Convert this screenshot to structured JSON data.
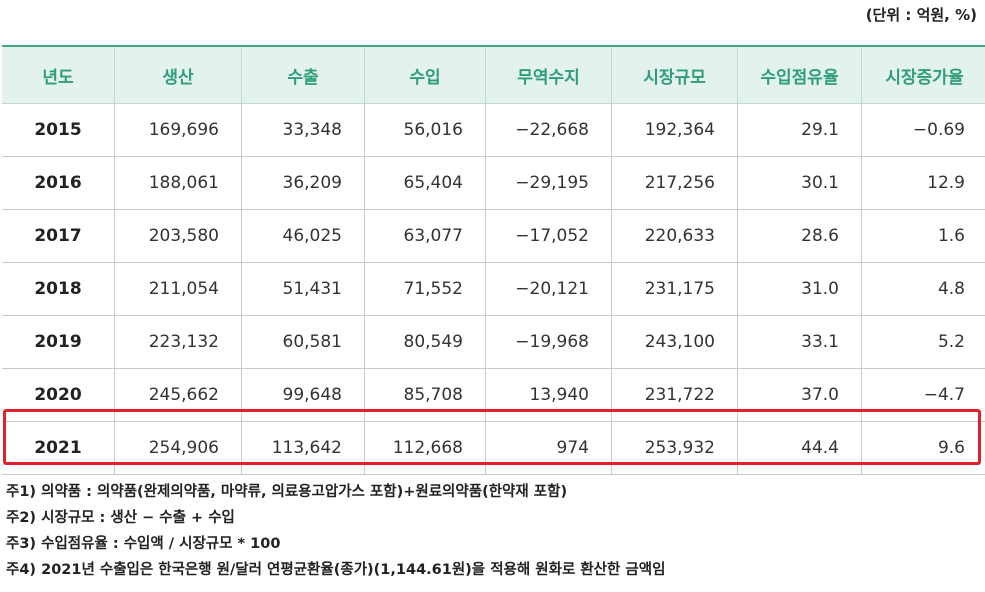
{
  "unit_label": "(단위 : 억원, %)",
  "table": {
    "headers": [
      "년도",
      "생산",
      "수출",
      "수입",
      "무역수지",
      "시장규모",
      "수입점유율",
      "시장증가율"
    ],
    "rows": [
      [
        "2015",
        "169,696",
        "33,348",
        "56,016",
        "−22,668",
        "192,364",
        "29.1",
        "−0.69"
      ],
      [
        "2016",
        "188,061",
        "36,209",
        "65,404",
        "−29,195",
        "217,256",
        "30.1",
        "12.9"
      ],
      [
        "2017",
        "203,580",
        "46,025",
        "63,077",
        "−17,052",
        "220,633",
        "28.6",
        "1.6"
      ],
      [
        "2018",
        "211,054",
        "51,431",
        "71,552",
        "−20,121",
        "231,175",
        "31.0",
        "4.8"
      ],
      [
        "2019",
        "223,132",
        "60,581",
        "80,549",
        "−19,968",
        "243,100",
        "33.1",
        "5.2"
      ],
      [
        "2020",
        "245,662",
        "99,648",
        "85,708",
        "13,940",
        "231,722",
        "37.0",
        "−4.7"
      ],
      [
        "2021",
        "254,906",
        "113,642",
        "112,668",
        "974",
        "253,932",
        "44.4",
        "9.6"
      ]
    ]
  },
  "highlight_color": "#e0202a",
  "header_text_color": "#2e9e77",
  "header_bg_color": "#e3f2ee",
  "notes": [
    "주1) 의약품 : 의약품(완제의약품, 마약류, 의료용고압가스 포함)+원료의약품(한약재 포함)",
    "주2) 시장규모 : 생산 − 수출 + 수입",
    "주3) 수입점유율 : 수입액 / 시장규모 * 100",
    "주4) 2021년 수출입은 한국은행 원/달러 연평균환율(종가)(1,144.61원)을 적용해 원화로 환산한 금액임"
  ]
}
